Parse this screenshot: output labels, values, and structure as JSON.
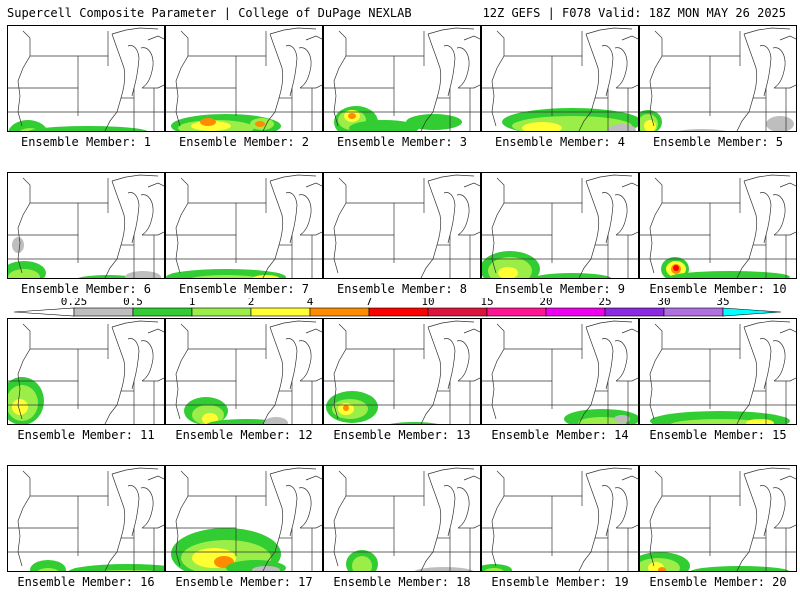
{
  "header": {
    "left": "Supercell Composite Parameter | College of DuPage NEXLAB",
    "right": "12Z GEFS | F078 Valid: 18Z MON MAY 26 2025"
  },
  "members": [
    {
      "label": "Ensemble Member: 1"
    },
    {
      "label": "Ensemble Member: 2"
    },
    {
      "label": "Ensemble Member: 3"
    },
    {
      "label": "Ensemble Member: 4"
    },
    {
      "label": "Ensemble Member: 5"
    },
    {
      "label": "Ensemble Member: 6"
    },
    {
      "label": "Ensemble Member: 7"
    },
    {
      "label": "Ensemble Member: 8"
    },
    {
      "label": "Ensemble Member: 9"
    },
    {
      "label": "Ensemble Member: 10"
    },
    {
      "label": "Ensemble Member: 11"
    },
    {
      "label": "Ensemble Member: 12"
    },
    {
      "label": "Ensemble Member: 13"
    },
    {
      "label": "Ensemble Member: 14"
    },
    {
      "label": "Ensemble Member: 15"
    },
    {
      "label": "Ensemble Member: 16"
    },
    {
      "label": "Ensemble Member: 17"
    },
    {
      "label": "Ensemble Member: 18"
    },
    {
      "label": "Ensemble Member: 19"
    },
    {
      "label": "Ensemble Member: 20"
    }
  ],
  "colorbar": {
    "ticks": [
      "0.25",
      "0.5",
      "1",
      "2",
      "4",
      "7",
      "10",
      "15",
      "20",
      "25",
      "30",
      "35"
    ],
    "colors": [
      "#bebebe",
      "#32cd32",
      "#9aee47",
      "#ffff33",
      "#ff8c00",
      "#ff0000",
      "#dc143c",
      "#ff1493",
      "#ee00ee",
      "#8a2be2",
      "#b070e0",
      "#00ffff"
    ]
  }
}
